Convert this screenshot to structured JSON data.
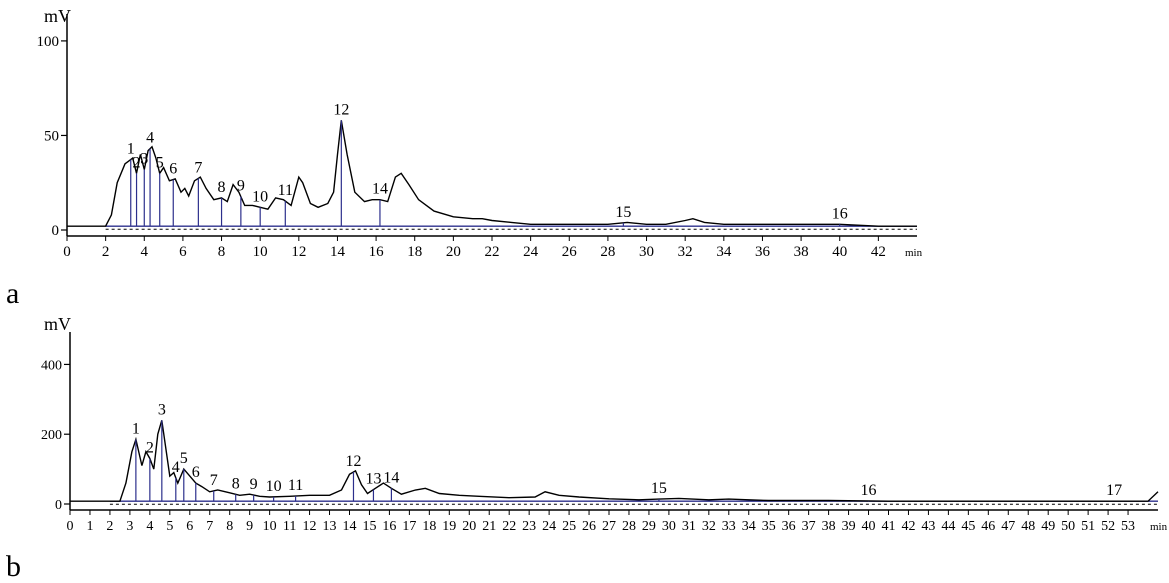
{
  "chart_data": [
    {
      "type": "line",
      "panel_label": "a",
      "ylabel": "mV",
      "xlabel": "min",
      "xlim": [
        0,
        44
      ],
      "ylim": [
        0,
        110
      ],
      "x_ticks": [
        0,
        2,
        4,
        6,
        8,
        10,
        12,
        14,
        16,
        18,
        20,
        22,
        24,
        26,
        28,
        30,
        32,
        34,
        36,
        38,
        40,
        42
      ],
      "y_ticks": [
        0,
        50,
        100
      ],
      "baseline_value": 2,
      "grid": false,
      "colors": {
        "trace": "#000000",
        "baseline": "#2c2f8c",
        "markers": "#2c2f8c"
      },
      "series": [
        {
          "x": [
            0,
            2,
            2.3,
            2.6,
            3.0,
            3.4,
            3.6,
            3.8,
            4.0,
            4.2,
            4.4,
            4.6,
            4.8,
            5.0,
            5.3,
            5.6,
            5.9,
            6.1,
            6.3,
            6.6,
            6.9,
            7.2,
            7.6,
            8.0,
            8.3,
            8.6,
            8.9,
            9.2,
            9.6,
            10.0,
            10.4,
            10.8,
            11.2,
            11.6,
            12.0,
            12.2,
            12.6,
            13.0,
            13.5,
            13.8,
            14.0,
            14.2,
            14.5,
            14.9,
            15.4,
            15.8,
            16.2,
            16.6,
            17.0,
            17.3,
            17.7,
            18.2,
            19,
            20,
            21,
            21.5,
            22,
            23,
            24,
            26,
            27,
            28,
            29,
            30,
            31,
            32,
            32.4,
            33,
            34,
            36,
            38,
            40,
            42,
            44
          ],
          "y": [
            2,
            2,
            8,
            25,
            35,
            38,
            30,
            40,
            32,
            42,
            44,
            38,
            30,
            33,
            26,
            27,
            20,
            22,
            18,
            26,
            28,
            22,
            16,
            17,
            15,
            24,
            20,
            13,
            13,
            12,
            11,
            17,
            16,
            13,
            28,
            25,
            14,
            12,
            14,
            20,
            40,
            58,
            40,
            20,
            15,
            16,
            16,
            15,
            28,
            30,
            24,
            16,
            10,
            7,
            6,
            6,
            5,
            4,
            3,
            3,
            3,
            3,
            4,
            3,
            3,
            5,
            6,
            4,
            3,
            3,
            3,
            3,
            2,
            2
          ]
        }
      ],
      "peaks": [
        {
          "label": "1",
          "x": 3.3
        },
        {
          "label": "2",
          "x": 3.6
        },
        {
          "label": "3",
          "x": 4.0
        },
        {
          "label": "4",
          "x": 4.3
        },
        {
          "label": "5",
          "x": 4.8
        },
        {
          "label": "6",
          "x": 5.5
        },
        {
          "label": "7",
          "x": 6.8
        },
        {
          "label": "8",
          "x": 8.0
        },
        {
          "label": "9",
          "x": 9.0
        },
        {
          "label": "10",
          "x": 10.0
        },
        {
          "label": "11",
          "x": 11.3
        },
        {
          "label": "12",
          "x": 14.2
        },
        {
          "label": "14",
          "x": 16.2
        },
        {
          "label": "15",
          "x": 28.8
        },
        {
          "label": "16",
          "x": 40.0
        }
      ]
    },
    {
      "type": "line",
      "panel_label": "b",
      "ylabel": "mV",
      "xlabel": "min",
      "xlim": [
        0,
        54.5
      ],
      "ylim": [
        0,
        470
      ],
      "x_ticks": [
        0,
        1,
        2,
        3,
        4,
        5,
        6,
        7,
        8,
        9,
        10,
        11,
        12,
        13,
        14,
        15,
        16,
        17,
        18,
        19,
        20,
        21,
        22,
        23,
        24,
        25,
        26,
        27,
        28,
        29,
        30,
        31,
        32,
        33,
        34,
        35,
        36,
        37,
        38,
        39,
        40,
        41,
        42,
        43,
        44,
        45,
        46,
        47,
        48,
        49,
        50,
        51,
        52,
        53
      ],
      "y_ticks": [
        0,
        200,
        400
      ],
      "baseline_value": 8,
      "grid": false,
      "colors": {
        "trace": "#000000",
        "baseline": "#2c2f8c",
        "markers": "#2c2f8c"
      },
      "series": [
        {
          "x": [
            0,
            2.5,
            2.8,
            3.1,
            3.3,
            3.6,
            3.8,
            4.0,
            4.2,
            4.4,
            4.6,
            4.8,
            5.0,
            5.2,
            5.4,
            5.7,
            6.0,
            6.3,
            6.6,
            7.0,
            7.4,
            8.0,
            8.5,
            9.0,
            9.5,
            10,
            11,
            12,
            13,
            13.6,
            14.0,
            14.3,
            14.6,
            14.9,
            15.3,
            15.7,
            16.1,
            16.6,
            17.3,
            17.8,
            18.5,
            19.5,
            20.5,
            22,
            23.3,
            23.8,
            24.5,
            25.5,
            27,
            28.5,
            29.5,
            30.5,
            32,
            33,
            34,
            35,
            38,
            41,
            45,
            50,
            54,
            54.5
          ],
          "y": [
            8,
            8,
            60,
            150,
            185,
            110,
            150,
            130,
            100,
            200,
            240,
            160,
            80,
            90,
            60,
            100,
            80,
            60,
            50,
            35,
            40,
            32,
            25,
            28,
            22,
            20,
            22,
            25,
            25,
            40,
            85,
            95,
            55,
            30,
            45,
            60,
            45,
            28,
            40,
            45,
            30,
            25,
            22,
            18,
            20,
            35,
            25,
            20,
            15,
            12,
            14,
            16,
            12,
            14,
            12,
            10,
            10,
            8,
            8,
            8,
            8,
            35
          ]
        }
      ],
      "peaks": [
        {
          "label": "1",
          "x": 3.3
        },
        {
          "label": "2",
          "x": 4.0
        },
        {
          "label": "3",
          "x": 4.6
        },
        {
          "label": "4",
          "x": 5.3
        },
        {
          "label": "5",
          "x": 5.7
        },
        {
          "label": "6",
          "x": 6.3
        },
        {
          "label": "7",
          "x": 7.2
        },
        {
          "label": "8",
          "x": 8.3
        },
        {
          "label": "9",
          "x": 9.2
        },
        {
          "label": "10",
          "x": 10.2
        },
        {
          "label": "11",
          "x": 11.3
        },
        {
          "label": "12",
          "x": 14.2
        },
        {
          "label": "13",
          "x": 15.2
        },
        {
          "label": "14",
          "x": 16.1
        },
        {
          "label": "15",
          "x": 29.5
        },
        {
          "label": "16",
          "x": 40.0
        },
        {
          "label": "17",
          "x": 52.3
        }
      ]
    }
  ]
}
